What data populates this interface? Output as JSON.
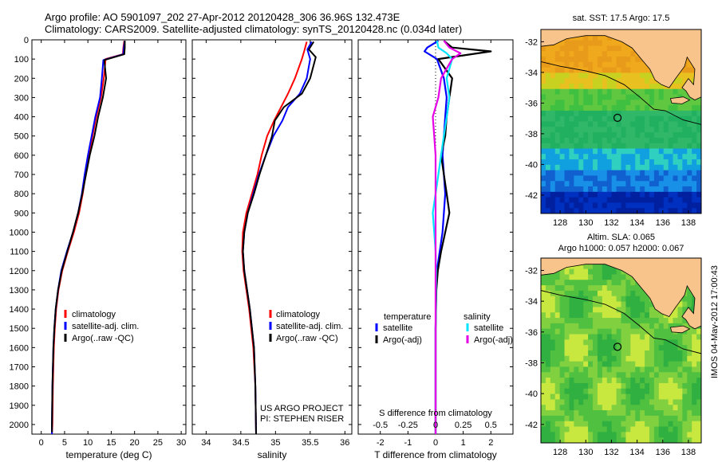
{
  "header": {
    "line1": "Argo profile: AO 5901097_202 27-Apr-2012 20120428_306 36.96S 132.473E",
    "line2": "Climatology: CARS2009. Satellite-adjusted climatology: synTS_20120428.nc (0.034d later)"
  },
  "footer_vertical": "IMOS 04-May-2012 17:00:43",
  "colors": {
    "climatology": "#ff0000",
    "satellite": "#0000ff",
    "argo": "#000000",
    "cyan": "#00e5ff",
    "magenta": "#e600e6",
    "land": "#f9c48c"
  },
  "chart_data": [
    {
      "id": "temperature",
      "type": "line",
      "xlabel": "temperature (deg C)",
      "ylabel": "",
      "xlim": [
        -2,
        31
      ],
      "ylim": [
        2050,
        0
      ],
      "xticks": [
        0,
        5,
        10,
        15,
        20,
        25,
        30
      ],
      "yticks": [
        0,
        100,
        200,
        300,
        400,
        500,
        600,
        700,
        800,
        900,
        1000,
        1100,
        1200,
        1300,
        1400,
        1500,
        1600,
        1700,
        1800,
        1900,
        2000
      ],
      "legend": [
        "climatology",
        "satellite-adj. clim.",
        "Argo(..raw -QC)"
      ],
      "legend_position": "lower-center",
      "series": [
        {
          "name": "climatology",
          "color": "#ff0000",
          "x": [
            17.8,
            17.6,
            17.5,
            13.8,
            13.4,
            12.8,
            11.8,
            11.0,
            10.2,
            9.5,
            8.9,
            8.1,
            7.0,
            5.7,
            4.5,
            3.7,
            3.2,
            2.9,
            2.7,
            2.5,
            2.4,
            2.3
          ],
          "y": [
            5,
            40,
            75,
            100,
            200,
            300,
            400,
            500,
            600,
            700,
            800,
            900,
            1000,
            1100,
            1200,
            1300,
            1400,
            1500,
            1600,
            1800,
            2000,
            2050
          ]
        },
        {
          "name": "satellite-adj. clim.",
          "color": "#0000ff",
          "x": [
            17.9,
            17.7,
            17.6,
            13.3,
            13.0,
            12.6,
            11.6,
            10.8,
            10.0,
            9.3,
            8.7,
            7.9,
            6.8,
            5.5,
            4.3,
            3.6,
            3.1,
            2.8,
            2.6,
            2.4,
            2.3,
            2.3
          ],
          "y": [
            5,
            40,
            75,
            105,
            200,
            300,
            400,
            500,
            600,
            700,
            800,
            900,
            1000,
            1100,
            1200,
            1300,
            1400,
            1500,
            1600,
            1800,
            2000,
            2050
          ]
        },
        {
          "name": "Argo(..raw -QC)",
          "color": "#000000",
          "x": [
            17.9,
            17.9,
            17.8,
            13.5,
            13.9,
            13.2,
            12.2,
            11.4,
            10.4,
            9.6,
            8.8,
            7.9,
            6.8,
            5.6,
            4.4,
            3.6,
            3.1,
            2.8,
            2.6,
            2.4,
            2.3,
            2.3
          ],
          "y": [
            5,
            40,
            75,
            105,
            200,
            300,
            400,
            500,
            600,
            700,
            800,
            900,
            1000,
            1100,
            1200,
            1300,
            1400,
            1500,
            1600,
            1800,
            2000,
            2040
          ]
        }
      ]
    },
    {
      "id": "salinity",
      "type": "line",
      "xlabel": "salinity",
      "xlim": [
        33.8,
        36.1
      ],
      "ylim": [
        2050,
        0
      ],
      "xticks": [
        34,
        34.5,
        35,
        35.5,
        36
      ],
      "legend": [
        "climatology",
        "satellite-adj. clim.",
        "Argo(..raw -QC)"
      ],
      "legend_position": "lower-right",
      "annotations": [
        "US ARGO PROJECT",
        "PI: STEPHEN RISER"
      ],
      "series": [
        {
          "name": "climatology",
          "color": "#ff0000",
          "x": [
            35.45,
            35.42,
            35.38,
            35.28,
            35.18,
            35.08,
            34.98,
            34.88,
            34.8,
            34.74,
            34.66,
            34.58,
            34.53,
            34.52,
            34.54,
            34.58,
            34.62,
            34.65,
            34.68,
            34.71,
            34.72
          ],
          "y": [
            10,
            50,
            100,
            200,
            280,
            350,
            420,
            500,
            600,
            700,
            800,
            900,
            1000,
            1100,
            1200,
            1300,
            1400,
            1500,
            1600,
            1800,
            2050
          ]
        },
        {
          "name": "satellite-adj. clim.",
          "color": "#0000ff",
          "x": [
            35.52,
            35.46,
            35.5,
            35.45,
            35.35,
            35.18,
            35.1,
            34.97,
            34.86,
            34.76,
            34.68,
            34.6,
            34.55,
            34.53,
            34.55,
            34.59,
            34.63,
            34.66,
            34.69,
            34.71,
            34.72
          ],
          "y": [
            10,
            50,
            100,
            200,
            280,
            350,
            420,
            500,
            600,
            700,
            800,
            900,
            1000,
            1100,
            1200,
            1300,
            1400,
            1500,
            1600,
            1800,
            2050
          ]
        },
        {
          "name": "Argo(..raw -QC)",
          "color": "#000000",
          "x": [
            35.55,
            35.48,
            35.58,
            35.5,
            35.38,
            35.12,
            34.99,
            34.95,
            34.86,
            34.77,
            34.69,
            34.6,
            34.55,
            34.53,
            34.55,
            34.59,
            34.63,
            34.66,
            34.69,
            34.71,
            34.72
          ],
          "y": [
            10,
            50,
            90,
            200,
            280,
            350,
            420,
            500,
            600,
            700,
            800,
            900,
            1000,
            1100,
            1200,
            1300,
            1400,
            1500,
            1600,
            1800,
            2050
          ]
        }
      ]
    },
    {
      "id": "differences",
      "type": "line",
      "xlabel": "T difference from climatology",
      "xlabel_top": "S difference from climatology",
      "xlim": [
        -2.8,
        2.8
      ],
      "ylim": [
        2050,
        0
      ],
      "xticks": [
        -2,
        -1,
        0,
        1,
        2
      ],
      "xticks_top": [
        -0.5,
        -0.25,
        0,
        0.25,
        0.5
      ],
      "legend_groups": [
        {
          "title": "temperature",
          "items": [
            "satellite",
            "Argo(-adj)"
          ],
          "colors": [
            "#0000ff",
            "#000000"
          ]
        },
        {
          "title": "salinity",
          "items": [
            "satellite",
            "Argo(-adj)"
          ],
          "colors": [
            "#00e5ff",
            "#e600e6"
          ]
        }
      ],
      "series": [
        {
          "name": "temperature satellite",
          "color": "#0000ff",
          "x": [
            0.1,
            -0.3,
            -0.4,
            0.05,
            0.3,
            0.4,
            0.35,
            0.3,
            0.25,
            0.3,
            0.35,
            0.3,
            0.25,
            0.15,
            0.05,
            0.02,
            0.0,
            0.0,
            0.0
          ],
          "y": [
            5,
            40,
            60,
            100,
            200,
            300,
            400,
            500,
            600,
            700,
            800,
            900,
            1000,
            1100,
            1200,
            1300,
            1500,
            1800,
            2050
          ]
        },
        {
          "name": "temperature Argo(-adj)",
          "color": "#000000",
          "x": [
            0.3,
            0.6,
            2.0,
            0.1,
            0.6,
            0.5,
            0.4,
            0.35,
            0.2,
            0.3,
            0.4,
            0.5,
            0.35,
            0.2,
            0.08,
            0.03,
            0.0,
            0.0,
            0.0
          ],
          "y": [
            5,
            40,
            60,
            100,
            200,
            300,
            400,
            500,
            600,
            700,
            800,
            900,
            1000,
            1100,
            1200,
            1300,
            1500,
            1800,
            2050
          ]
        },
        {
          "name": "salinity satellite",
          "color": "#00e5ff",
          "x": [
            0.05,
            0.1,
            0.4,
            0.6,
            0.4,
            0.5,
            0.4,
            0.3,
            0.2,
            0.1,
            0.0,
            -0.1,
            -0.05,
            0.0,
            0.02,
            0.0,
            0.0,
            0.0
          ],
          "y": [
            5,
            40,
            70,
            100,
            200,
            300,
            400,
            500,
            600,
            700,
            800,
            900,
            1000,
            1100,
            1200,
            1500,
            1800,
            2050
          ]
        },
        {
          "name": "salinity Argo(-adj)",
          "color": "#e600e6",
          "x": [
            0.3,
            0.5,
            0.9,
            0.6,
            0.2,
            0.1,
            -0.1,
            -0.05,
            0.0,
            0.0,
            0.0,
            0.0
          ],
          "y": [
            5,
            40,
            70,
            100,
            200,
            300,
            400,
            500,
            600,
            800,
            1200,
            2050
          ]
        }
      ]
    },
    {
      "id": "map-sst",
      "type": "heatmap",
      "title": "sat. SST: 17.5  Argo: 17.5",
      "xlim": [
        126.5,
        139
      ],
      "ylim": [
        -43.2,
        -31.2
      ],
      "xticks": [
        128,
        130,
        132,
        134,
        136,
        138
      ],
      "yticks": [
        -32,
        -34,
        -36,
        -38,
        -40,
        -42
      ],
      "marker": {
        "lon": 132.473,
        "lat": -36.96
      }
    },
    {
      "id": "map-sla",
      "type": "heatmap",
      "title": "Altim. SLA: 0.065",
      "subtitle": "Argo h1000: 0.057  h2000: 0.067",
      "xlim": [
        126.5,
        139
      ],
      "ylim": [
        -43.2,
        -31.2
      ],
      "xticks": [
        128,
        130,
        132,
        134,
        136,
        138
      ],
      "yticks": [
        -32,
        -34,
        -36,
        -38,
        -40,
        -42
      ],
      "marker": {
        "lon": 132.473,
        "lat": -36.96
      }
    }
  ]
}
